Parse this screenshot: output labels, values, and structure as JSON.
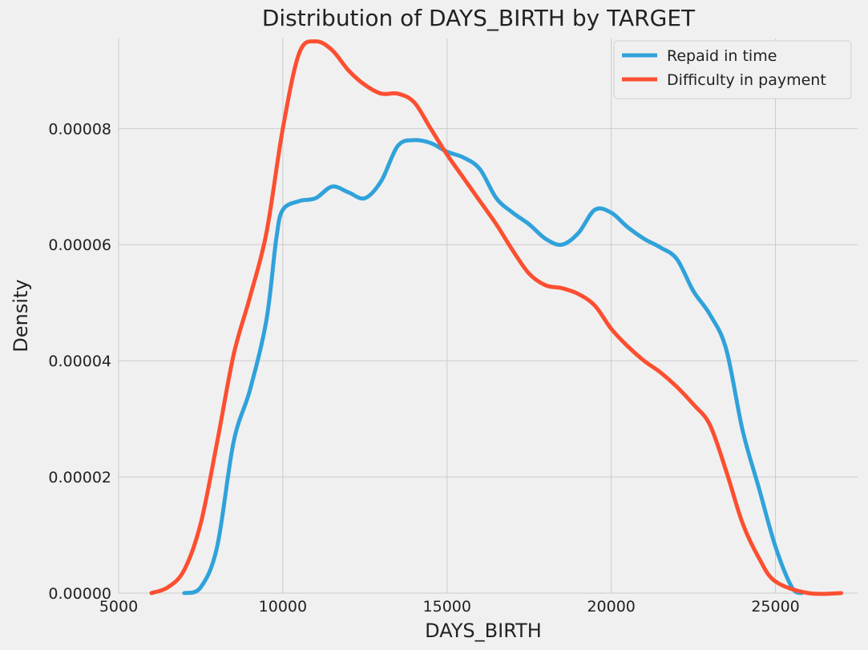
{
  "chart_data": {
    "type": "line",
    "title": "Distribution of DAYS_BIRTH by TARGET",
    "xlabel": "DAYS_BIRTH",
    "ylabel": "Density",
    "xlim": [
      5000,
      27500
    ],
    "ylim": [
      0,
      9.55e-05
    ],
    "x_ticks": [
      5000,
      10000,
      15000,
      20000,
      25000
    ],
    "x_tick_labels": [
      "5000",
      "10000",
      "15000",
      "20000",
      "25000"
    ],
    "y_ticks": [
      0,
      2e-05,
      4e-05,
      6e-05,
      8e-05
    ],
    "y_tick_labels": [
      "0.00000",
      "0.00002",
      "0.00004",
      "0.00006",
      "0.00008"
    ],
    "grid": true,
    "legend_position": "top-right",
    "series": [
      {
        "name": "Repaid in time",
        "color": "#30a2da",
        "points": [
          [
            7000,
            0.0
          ],
          [
            7500,
            1e-06
          ],
          [
            8000,
            8e-06
          ],
          [
            8500,
            2.6e-05
          ],
          [
            9000,
            3.5e-05
          ],
          [
            9500,
            4.7e-05
          ],
          [
            9800,
            6.1e-05
          ],
          [
            10000,
            6.6e-05
          ],
          [
            10500,
            6.75e-05
          ],
          [
            11000,
            6.8e-05
          ],
          [
            11500,
            7e-05
          ],
          [
            12000,
            6.9e-05
          ],
          [
            12500,
            6.8e-05
          ],
          [
            13000,
            7.1e-05
          ],
          [
            13500,
            7.7e-05
          ],
          [
            14000,
            7.8e-05
          ],
          [
            14500,
            7.75e-05
          ],
          [
            15000,
            7.6e-05
          ],
          [
            15500,
            7.5e-05
          ],
          [
            16000,
            7.3e-05
          ],
          [
            16500,
            6.8e-05
          ],
          [
            17000,
            6.55e-05
          ],
          [
            17500,
            6.35e-05
          ],
          [
            18000,
            6.1e-05
          ],
          [
            18500,
            6e-05
          ],
          [
            19000,
            6.2e-05
          ],
          [
            19500,
            6.6e-05
          ],
          [
            20000,
            6.55e-05
          ],
          [
            20500,
            6.3e-05
          ],
          [
            21000,
            6.1e-05
          ],
          [
            21500,
            5.95e-05
          ],
          [
            22000,
            5.75e-05
          ],
          [
            22500,
            5.2e-05
          ],
          [
            23000,
            4.8e-05
          ],
          [
            23500,
            4.2e-05
          ],
          [
            24000,
            2.8e-05
          ],
          [
            24500,
            1.8e-05
          ],
          [
            25000,
            8e-06
          ],
          [
            25500,
            1e-06
          ],
          [
            25800,
            0.0
          ]
        ]
      },
      {
        "name": "Difficulty in payment",
        "color": "#fc4f30",
        "points": [
          [
            6000,
            0.0
          ],
          [
            6500,
            1e-06
          ],
          [
            7000,
            4e-06
          ],
          [
            7500,
            1.2e-05
          ],
          [
            8000,
            2.6e-05
          ],
          [
            8500,
            4.1e-05
          ],
          [
            9000,
            5.1e-05
          ],
          [
            9500,
            6.2e-05
          ],
          [
            10000,
            8e-05
          ],
          [
            10500,
            9.3e-05
          ],
          [
            11000,
            9.5e-05
          ],
          [
            11500,
            9.35e-05
          ],
          [
            12000,
            9e-05
          ],
          [
            12500,
            8.75e-05
          ],
          [
            13000,
            8.6e-05
          ],
          [
            13500,
            8.6e-05
          ],
          [
            14000,
            8.45e-05
          ],
          [
            14500,
            8e-05
          ],
          [
            15000,
            7.55e-05
          ],
          [
            15500,
            7.15e-05
          ],
          [
            16000,
            6.75e-05
          ],
          [
            16500,
            6.35e-05
          ],
          [
            17000,
            5.9e-05
          ],
          [
            17500,
            5.5e-05
          ],
          [
            18000,
            5.3e-05
          ],
          [
            18500,
            5.25e-05
          ],
          [
            19000,
            5.15e-05
          ],
          [
            19500,
            4.95e-05
          ],
          [
            20000,
            4.55e-05
          ],
          [
            20500,
            4.25e-05
          ],
          [
            21000,
            4e-05
          ],
          [
            21500,
            3.8e-05
          ],
          [
            22000,
            3.55e-05
          ],
          [
            22500,
            3.25e-05
          ],
          [
            23000,
            2.9e-05
          ],
          [
            23500,
            2.1e-05
          ],
          [
            24000,
            1.2e-05
          ],
          [
            24500,
            6e-06
          ],
          [
            25000,
            2e-06
          ],
          [
            26000,
            0.0
          ],
          [
            27000,
            0.0
          ]
        ]
      }
    ]
  }
}
